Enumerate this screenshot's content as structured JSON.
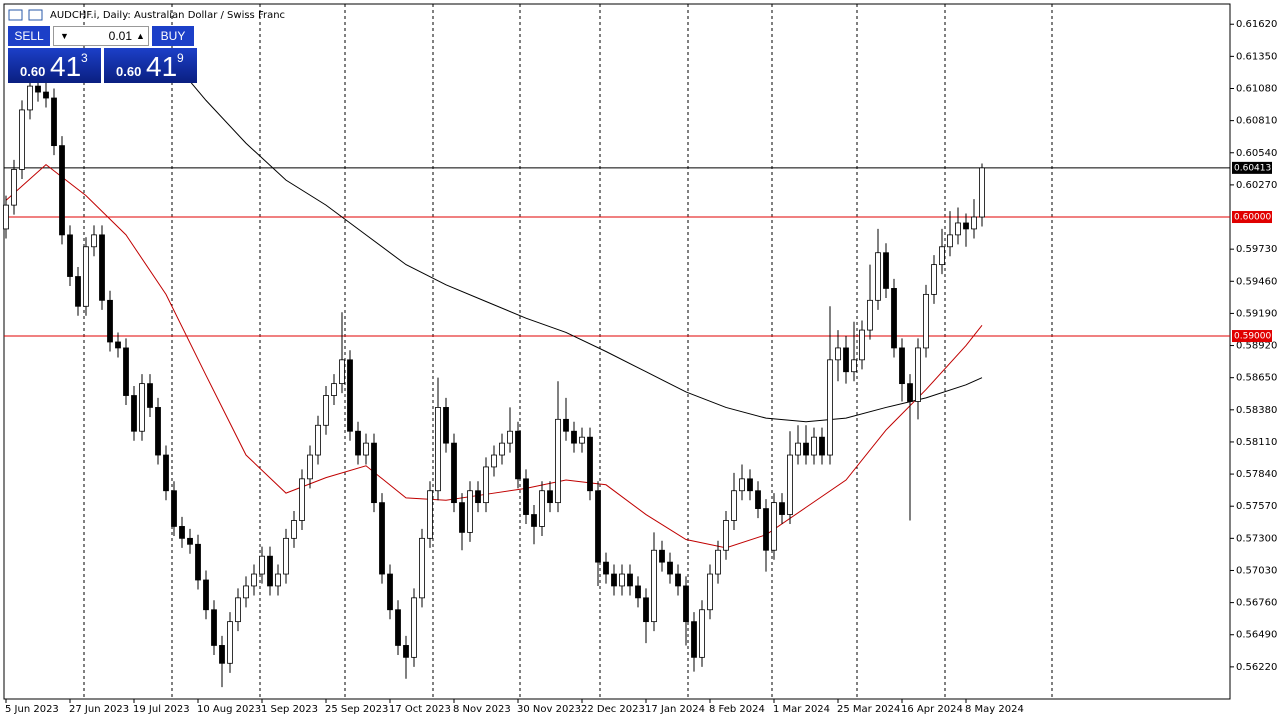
{
  "header": {
    "title": "AUDCHF.i, Daily:  Australian Dollar / Swiss Franc"
  },
  "trade_panel": {
    "sell": "SELL",
    "buy": "BUY",
    "volume": "0.01",
    "bid": {
      "big": "0.60",
      "main": "41",
      "small": "3"
    },
    "ask": {
      "big": "0.60",
      "main": "41",
      "small": "9"
    }
  },
  "chart_data": {
    "type": "candlestick",
    "xlim": [
      -0.25,
      153
    ],
    "ylim": [
      0.5595,
      0.6179
    ],
    "xticks": [
      {
        "value": 0,
        "label": "5 Jun 2023"
      },
      {
        "value": 8,
        "label": "27 Jun 2023"
      },
      {
        "value": 16,
        "label": "19 Jul 2023"
      },
      {
        "value": 24,
        "label": "10 Aug 2023"
      },
      {
        "value": 32,
        "label": "1 Sep 2023"
      },
      {
        "value": 40,
        "label": "25 Sep 2023"
      },
      {
        "value": 48,
        "label": "17 Oct 2023"
      },
      {
        "value": 56,
        "label": "8 Nov 2023"
      },
      {
        "value": 64,
        "label": "30 Nov 2023"
      },
      {
        "value": 72,
        "label": "22 Dec 2023"
      },
      {
        "value": 80,
        "label": "17 Jan 2024"
      },
      {
        "value": 88,
        "label": "8 Feb 2024"
      },
      {
        "value": 96,
        "label": "1 Mar 2024"
      },
      {
        "value": 104,
        "label": "25 Mar 2024"
      },
      {
        "value": 112,
        "label": "16 Apr 2024"
      },
      {
        "value": 120,
        "label": "8 May 2024"
      }
    ],
    "yticks": [
      {
        "value": 0.6162,
        "label": "0.61620"
      },
      {
        "value": 0.6135,
        "label": "0.61350"
      },
      {
        "value": 0.6108,
        "label": "0.61080"
      },
      {
        "value": 0.6081,
        "label": "0.60810"
      },
      {
        "value": 0.6054,
        "label": "0.60540"
      },
      {
        "value": 0.6027,
        "label": "0.60270"
      },
      {
        "value": 0.5973,
        "label": "0.59730"
      },
      {
        "value": 0.5946,
        "label": "0.59460"
      },
      {
        "value": 0.5919,
        "label": "0.59190"
      },
      {
        "value": 0.5892,
        "label": "0.58920"
      },
      {
        "value": 0.5865,
        "label": "0.58650"
      },
      {
        "value": 0.5838,
        "label": "0.58380"
      },
      {
        "value": 0.5811,
        "label": "0.58110"
      },
      {
        "value": 0.5784,
        "label": "0.57840"
      },
      {
        "value": 0.5757,
        "label": "0.57570"
      },
      {
        "value": 0.573,
        "label": "0.57300"
      },
      {
        "value": 0.5703,
        "label": "0.57030"
      },
      {
        "value": 0.5676,
        "label": "0.56760"
      },
      {
        "value": 0.5649,
        "label": "0.56490"
      },
      {
        "value": 0.5622,
        "label": "0.56220"
      }
    ],
    "up_color": "#ffffff",
    "down_color": "#000000",
    "outline_color": "#000000",
    "open": [
      0.599,
      0.601,
      0.604,
      0.609,
      0.611,
      0.6105,
      0.61,
      0.606,
      0.5985,
      0.595,
      0.5925,
      0.5975,
      0.5985,
      0.593,
      0.5895,
      0.589,
      0.585,
      0.582,
      0.586,
      0.584,
      0.58,
      0.577,
      0.574,
      0.573,
      0.5725,
      0.5695,
      0.567,
      0.564,
      0.5625,
      0.566,
      0.568,
      0.569,
      0.57,
      0.5715,
      0.569,
      0.57,
      0.573,
      0.5745,
      0.578,
      0.58,
      0.5825,
      0.585,
      0.586,
      0.588,
      0.582,
      0.58,
      0.581,
      0.576,
      0.57,
      0.567,
      0.564,
      0.563,
      0.568,
      0.573,
      0.577,
      0.584,
      0.581,
      0.576,
      0.5735,
      0.577,
      0.576,
      0.579,
      0.58,
      0.581,
      0.582,
      0.578,
      0.575,
      0.574,
      0.577,
      0.576,
      0.583,
      0.582,
      0.581,
      0.5815,
      0.577,
      0.571,
      0.57,
      0.569,
      0.57,
      0.569,
      0.568,
      0.566,
      0.572,
      0.571,
      0.57,
      0.569,
      0.566,
      0.563,
      0.567,
      0.57,
      0.572,
      0.5745,
      0.577,
      0.578,
      0.577,
      0.5755,
      0.572,
      0.576,
      0.575,
      0.58,
      0.581,
      0.58,
      0.5815,
      0.58,
      0.588,
      0.589,
      0.587,
      0.588,
      0.5905,
      0.593,
      0.597,
      0.594,
      0.589,
      0.586,
      0.5845,
      0.589,
      0.5935,
      0.596,
      0.5975,
      0.5985,
      0.5995,
      0.599,
      0.6
    ],
    "high": [
      0.6018,
      0.6048,
      0.6098,
      0.6118,
      0.6118,
      0.6113,
      0.6108,
      0.6068,
      0.5993,
      0.5958,
      0.5983,
      0.5993,
      0.5993,
      0.5938,
      0.5903,
      0.5898,
      0.5858,
      0.5868,
      0.5868,
      0.5848,
      0.5808,
      0.5778,
      0.5748,
      0.5738,
      0.5733,
      0.5703,
      0.5678,
      0.5648,
      0.5668,
      0.5688,
      0.5698,
      0.5708,
      0.5723,
      0.5723,
      0.5708,
      0.5738,
      0.5753,
      0.5788,
      0.5808,
      0.5833,
      0.5858,
      0.5868,
      0.592,
      0.5888,
      0.5828,
      0.5818,
      0.5818,
      0.5768,
      0.5708,
      0.5678,
      0.5648,
      0.5688,
      0.5738,
      0.5778,
      0.5865,
      0.5848,
      0.5818,
      0.5768,
      0.5778,
      0.5778,
      0.5798,
      0.5808,
      0.5818,
      0.584,
      0.5828,
      0.5788,
      0.5758,
      0.5778,
      0.5778,
      0.5862,
      0.5848,
      0.5828,
      0.5823,
      0.5823,
      0.5778,
      0.5718,
      0.5708,
      0.5708,
      0.5708,
      0.5698,
      0.5688,
      0.5735,
      0.5728,
      0.5718,
      0.5708,
      0.5698,
      0.5668,
      0.5678,
      0.5708,
      0.5728,
      0.5753,
      0.5785,
      0.5792,
      0.5788,
      0.5778,
      0.5763,
      0.5768,
      0.5768,
      0.582,
      0.5825,
      0.5825,
      0.5823,
      0.5823,
      0.5925,
      0.5905,
      0.59,
      0.5912,
      0.5913,
      0.596,
      0.599,
      0.5978,
      0.5948,
      0.5898,
      0.5868,
      0.5898,
      0.5943,
      0.5968,
      0.599,
      0.6005,
      0.6008,
      0.6003,
      0.6015,
      0.6045
    ],
    "low": [
      0.5982,
      0.6002,
      0.6032,
      0.6082,
      0.6097,
      0.6092,
      0.6052,
      0.5977,
      0.5942,
      0.5917,
      0.5917,
      0.5967,
      0.5922,
      0.5887,
      0.5882,
      0.5842,
      0.5812,
      0.5812,
      0.5832,
      0.5792,
      0.5762,
      0.5732,
      0.5722,
      0.5717,
      0.5687,
      0.5662,
      0.5632,
      0.5605,
      0.5617,
      0.5652,
      0.5672,
      0.5682,
      0.5692,
      0.5682,
      0.5682,
      0.5692,
      0.5722,
      0.5737,
      0.5772,
      0.5792,
      0.5817,
      0.5842,
      0.5852,
      0.5812,
      0.5792,
      0.5792,
      0.5752,
      0.5692,
      0.5662,
      0.5632,
      0.5612,
      0.5622,
      0.5672,
      0.5722,
      0.5762,
      0.5802,
      0.5752,
      0.572,
      0.5727,
      0.5752,
      0.5752,
      0.5782,
      0.5792,
      0.5802,
      0.5772,
      0.5742,
      0.5725,
      0.5732,
      0.5752,
      0.5752,
      0.5812,
      0.5802,
      0.5802,
      0.5762,
      0.569,
      0.5692,
      0.5682,
      0.5682,
      0.5682,
      0.5672,
      0.5642,
      0.5652,
      0.5702,
      0.5692,
      0.5682,
      0.564,
      0.5618,
      0.5622,
      0.5662,
      0.5692,
      0.5712,
      0.5737,
      0.5762,
      0.5762,
      0.5747,
      0.5702,
      0.5712,
      0.5742,
      0.5742,
      0.5792,
      0.5792,
      0.5792,
      0.5792,
      0.5792,
      0.5862,
      0.586,
      0.5862,
      0.5872,
      0.5897,
      0.5922,
      0.5932,
      0.5882,
      0.5845,
      0.5745,
      0.583,
      0.5882,
      0.5927,
      0.5952,
      0.5967,
      0.5977,
      0.5975,
      0.5982,
      0.5992
    ],
    "close": [
      0.601,
      0.604,
      0.609,
      0.611,
      0.6105,
      0.61,
      0.606,
      0.5985,
      0.595,
      0.5925,
      0.5975,
      0.5985,
      0.593,
      0.5895,
      0.589,
      0.585,
      0.582,
      0.586,
      0.584,
      0.58,
      0.577,
      0.574,
      0.573,
      0.5725,
      0.5695,
      0.567,
      0.564,
      0.5625,
      0.566,
      0.568,
      0.569,
      0.57,
      0.5715,
      0.569,
      0.57,
      0.573,
      0.5745,
      0.578,
      0.58,
      0.5825,
      0.585,
      0.586,
      0.588,
      0.582,
      0.58,
      0.581,
      0.576,
      0.57,
      0.567,
      0.564,
      0.563,
      0.568,
      0.573,
      0.577,
      0.584,
      0.581,
      0.576,
      0.5735,
      0.577,
      0.576,
      0.579,
      0.58,
      0.581,
      0.582,
      0.578,
      0.575,
      0.574,
      0.577,
      0.576,
      0.583,
      0.582,
      0.581,
      0.5815,
      0.577,
      0.571,
      0.57,
      0.569,
      0.57,
      0.569,
      0.568,
      0.566,
      0.572,
      0.571,
      0.57,
      0.569,
      0.566,
      0.563,
      0.567,
      0.57,
      0.572,
      0.5745,
      0.577,
      0.578,
      0.577,
      0.5755,
      0.572,
      0.576,
      0.575,
      0.58,
      0.581,
      0.58,
      0.5815,
      0.58,
      0.588,
      0.589,
      0.587,
      0.588,
      0.5905,
      0.593,
      0.597,
      0.594,
      0.589,
      0.586,
      0.5845,
      0.589,
      0.5935,
      0.596,
      0.5975,
      0.5985,
      0.5995,
      0.599,
      0.6,
      0.60413
    ],
    "lines": [
      {
        "color": "#c00000",
        "x": [
          0,
          5,
          10,
          15,
          20,
          25,
          30,
          35,
          40,
          45,
          50,
          55,
          60,
          65,
          70,
          75,
          80,
          85,
          90,
          95,
          100,
          105,
          110,
          115,
          120,
          122
        ],
        "values": [
          0.6014,
          0.6044,
          0.6018,
          0.5985,
          0.5935,
          0.5867,
          0.58,
          0.5768,
          0.5781,
          0.5791,
          0.5764,
          0.5762,
          0.5767,
          0.5772,
          0.5779,
          0.5775,
          0.575,
          0.5729,
          0.5722,
          0.5733,
          0.5756,
          0.5779,
          0.5821,
          0.5855,
          0.5892,
          0.5909
        ]
      },
      {
        "color": "#000000",
        "x": [
          22,
          25,
          30,
          35,
          40,
          45,
          50,
          55,
          60,
          65,
          70,
          75,
          80,
          85,
          90,
          95,
          100,
          105,
          110,
          115,
          120,
          122
        ],
        "values": [
          0.6122,
          0.6098,
          0.6062,
          0.6031,
          0.601,
          0.5985,
          0.596,
          0.5943,
          0.5929,
          0.5915,
          0.5903,
          0.5887,
          0.587,
          0.5853,
          0.584,
          0.5831,
          0.5828,
          0.5831,
          0.584,
          0.5848,
          0.5859,
          0.5865
        ]
      }
    ],
    "levels": [
      {
        "value": 0.6,
        "label": "0.60000",
        "color": "#e00000"
      },
      {
        "value": 0.59,
        "label": "0.59000",
        "color": "#e00000"
      },
      {
        "value": 0.60413,
        "label": "0.60413",
        "color": "#000000"
      }
    ]
  }
}
